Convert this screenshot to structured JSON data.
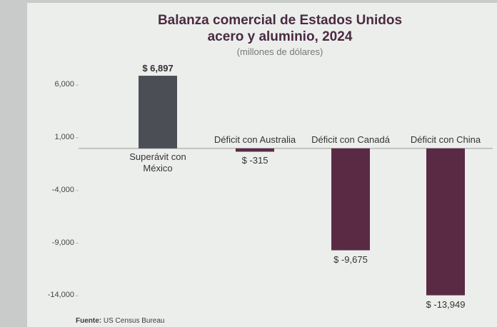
{
  "chart_data": {
    "type": "bar",
    "title": [
      "Balanza comercial de Estados Unidos",
      "acero y aluminio, 2024"
    ],
    "subtitle": "(millones de dólares)",
    "categories": [
      "Superávit con México",
      "Déficit con Australia",
      "Déficit con Canadá",
      "Déficit con China"
    ],
    "values": [
      6897,
      -315,
      -9675,
      -13949
    ],
    "value_labels": [
      "$ 6,897",
      "$ -315",
      "$ -9,675",
      "$ -13,949"
    ],
    "colors": [
      "#4b4f55",
      "#5a2a45",
      "#5a2a45",
      "#5a2a45"
    ],
    "ylim": [
      -15000,
      8000
    ],
    "yticks": [
      {
        "value": 6000,
        "label": "6,000"
      },
      {
        "value": 1000,
        "label": "1,000"
      },
      {
        "value": -4000,
        "label": "-4,000"
      },
      {
        "value": -9000,
        "label": "-9,000"
      },
      {
        "value": -14000,
        "label": "-14,000"
      }
    ],
    "source_label": "Fuente:",
    "source": "US Census Bureau"
  }
}
